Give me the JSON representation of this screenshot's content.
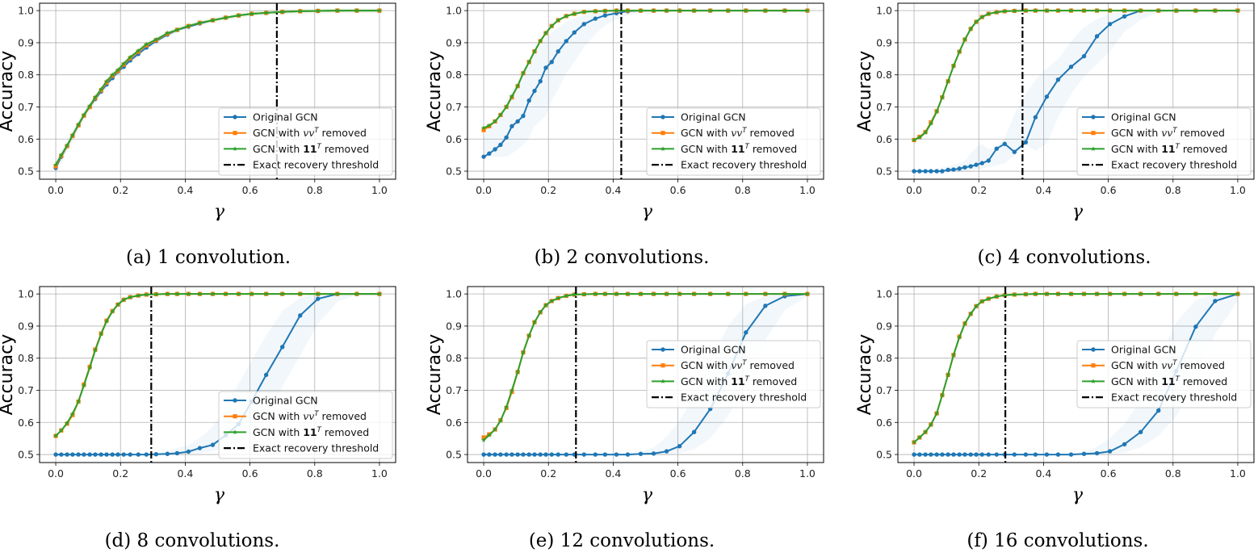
{
  "colors": {
    "original": "#1f77b4",
    "vv_removed": "#ff7f0e",
    "ones_removed": "#2ca02c",
    "threshold": "#000000"
  },
  "legend": [
    {
      "pre": "Original GCN",
      "math": "",
      "sup": "",
      "post": "",
      "marker": "circle",
      "bold": false
    },
    {
      "pre": "GCN with ",
      "math": "vv",
      "sup": "T",
      "post": " removed",
      "marker": "square",
      "bold": false
    },
    {
      "pre": "GCN with ",
      "math": "11",
      "sup": "T",
      "post": " removed",
      "marker": "star",
      "bold": true
    },
    {
      "pre": "Exact recovery threshold",
      "math": "",
      "sup": "",
      "post": "",
      "marker": "dashdot",
      "bold": false
    }
  ],
  "chart_data": [
    {
      "type": "line",
      "caption": "(a) 1 convolution.",
      "xlabel": "γ",
      "ylabel": "Accuracy",
      "xlim": [
        -0.05,
        1.05
      ],
      "ylim": [
        0.475,
        1.023
      ],
      "grid": true,
      "legend_position": "lower right",
      "xticks": [
        "0.0",
        "0.2",
        "0.4",
        "0.6",
        "0.8",
        "1.0"
      ],
      "yticks": [
        "0.5",
        "0.6",
        "0.7",
        "0.8",
        "0.9",
        "1.0"
      ],
      "x": [
        0,
        0.017,
        0.035,
        0.052,
        0.07,
        0.087,
        0.105,
        0.122,
        0.14,
        0.157,
        0.175,
        0.192,
        0.21,
        0.23,
        0.255,
        0.28,
        0.31,
        0.345,
        0.375,
        0.41,
        0.445,
        0.485,
        0.525,
        0.565,
        0.605,
        0.65,
        0.7,
        0.755,
        0.81,
        0.87,
        0.93,
        1.0
      ],
      "threshold": 0.683,
      "series": [
        {
          "name": "Original GCN",
          "values": [
            0.51,
            0.545,
            0.578,
            0.61,
            0.643,
            0.673,
            0.7,
            0.725,
            0.748,
            0.77,
            0.79,
            0.81,
            0.825,
            0.845,
            0.865,
            0.885,
            0.905,
            0.925,
            0.94,
            0.95,
            0.96,
            0.97,
            0.978,
            0.985,
            0.99,
            0.993,
            0.996,
            0.998,
            0.999,
            1,
            1,
            1
          ]
        },
        {
          "name": "GCN with vvT removed",
          "values": [
            0.515,
            0.548,
            0.578,
            0.61,
            0.643,
            0.673,
            0.7,
            0.728,
            0.752,
            0.776,
            0.797,
            0.812,
            0.832,
            0.852,
            0.872,
            0.892,
            0.908,
            0.928,
            0.94,
            0.952,
            0.962,
            0.97,
            0.978,
            0.985,
            0.99,
            0.993,
            0.996,
            0.998,
            0.999,
            1,
            1,
            1
          ]
        },
        {
          "name": "GCN with 11T removed",
          "values": [
            0.52,
            0.55,
            0.58,
            0.612,
            0.645,
            0.675,
            0.703,
            0.73,
            0.755,
            0.78,
            0.8,
            0.815,
            0.835,
            0.855,
            0.875,
            0.895,
            0.91,
            0.93,
            0.94,
            0.952,
            0.962,
            0.97,
            0.978,
            0.985,
            0.99,
            0.993,
            0.996,
            0.998,
            0.999,
            1,
            1,
            1
          ]
        }
      ]
    },
    {
      "type": "line",
      "caption": "(b) 2 convolutions.",
      "xlabel": "γ",
      "ylabel": "Accuracy",
      "xlim": [
        -0.05,
        1.05
      ],
      "ylim": [
        0.475,
        1.023
      ],
      "grid": true,
      "legend_position": "lower right",
      "xticks": [
        "0.0",
        "0.2",
        "0.4",
        "0.6",
        "0.8",
        "1.0"
      ],
      "yticks": [
        "0.5",
        "0.6",
        "0.7",
        "0.8",
        "0.9",
        "1.0"
      ],
      "x": [
        0,
        0.017,
        0.035,
        0.052,
        0.07,
        0.087,
        0.105,
        0.122,
        0.14,
        0.157,
        0.175,
        0.192,
        0.21,
        0.23,
        0.255,
        0.28,
        0.31,
        0.345,
        0.375,
        0.41,
        0.445,
        0.485,
        0.525,
        0.565,
        0.605,
        0.65,
        0.7,
        0.755,
        0.81,
        0.87,
        0.93,
        1.0
      ],
      "threshold": 0.425,
      "series": [
        {
          "name": "Original GCN",
          "values": [
            0.545,
            0.555,
            0.568,
            0.582,
            0.605,
            0.64,
            0.655,
            0.672,
            0.72,
            0.75,
            0.78,
            0.822,
            0.84,
            0.873,
            0.905,
            0.932,
            0.958,
            0.975,
            0.985,
            0.992,
            0.998,
            1,
            1,
            1,
            1,
            1,
            1,
            1,
            1,
            1,
            1,
            1
          ]
        },
        {
          "name": "GCN with vvT removed",
          "values": [
            0.628,
            0.64,
            0.655,
            0.675,
            0.7,
            0.73,
            0.765,
            0.805,
            0.84,
            0.873,
            0.905,
            0.93,
            0.952,
            0.97,
            0.983,
            0.99,
            0.996,
            0.998,
            0.999,
            1,
            1,
            1,
            1,
            1,
            1,
            1,
            1,
            1,
            1,
            1,
            1,
            1
          ]
        },
        {
          "name": "GCN with 11T removed",
          "values": [
            0.635,
            0.642,
            0.655,
            0.675,
            0.7,
            0.733,
            0.765,
            0.805,
            0.84,
            0.873,
            0.905,
            0.93,
            0.952,
            0.97,
            0.983,
            0.99,
            0.996,
            0.998,
            0.999,
            1,
            1,
            1,
            1,
            1,
            1,
            1,
            1,
            1,
            1,
            1,
            1,
            1
          ]
        }
      ]
    },
    {
      "type": "line",
      "caption": "(c) 4 convolutions.",
      "xlabel": "γ",
      "ylabel": "Accuracy",
      "xlim": [
        -0.05,
        1.05
      ],
      "ylim": [
        0.475,
        1.023
      ],
      "grid": true,
      "legend_position": "lower right",
      "xticks": [
        "0.0",
        "0.2",
        "0.4",
        "0.6",
        "0.8",
        "1.0"
      ],
      "yticks": [
        "0.5",
        "0.6",
        "0.7",
        "0.8",
        "0.9",
        "1.0"
      ],
      "x": [
        0,
        0.017,
        0.035,
        0.052,
        0.07,
        0.087,
        0.105,
        0.122,
        0.14,
        0.157,
        0.175,
        0.192,
        0.21,
        0.23,
        0.255,
        0.28,
        0.31,
        0.345,
        0.375,
        0.41,
        0.445,
        0.485,
        0.525,
        0.565,
        0.605,
        0.65,
        0.7,
        0.755,
        0.81,
        0.87,
        0.93,
        1.0
      ],
      "threshold": 0.335,
      "series": [
        {
          "name": "Original GCN",
          "values": [
            0.5,
            0.5,
            0.5,
            0.5,
            0.5,
            0.5,
            0.504,
            0.505,
            0.508,
            0.512,
            0.515,
            0.52,
            0.525,
            0.533,
            0.57,
            0.585,
            0.56,
            0.59,
            0.668,
            0.732,
            0.785,
            0.825,
            0.858,
            0.92,
            0.958,
            0.982,
            1,
            1,
            1,
            1,
            1,
            1
          ]
        },
        {
          "name": "GCN with vvT removed",
          "values": [
            0.597,
            0.607,
            0.622,
            0.652,
            0.687,
            0.73,
            0.78,
            0.828,
            0.872,
            0.91,
            0.943,
            0.965,
            0.98,
            0.99,
            0.995,
            0.998,
            0.999,
            1,
            1,
            1,
            1,
            1,
            1,
            1,
            1,
            1,
            1,
            1,
            1,
            1,
            1,
            1
          ]
        },
        {
          "name": "GCN with 11T removed",
          "values": [
            0.597,
            0.605,
            0.62,
            0.648,
            0.685,
            0.73,
            0.78,
            0.828,
            0.872,
            0.91,
            0.943,
            0.965,
            0.98,
            0.99,
            0.995,
            0.998,
            0.999,
            1,
            1,
            1,
            1,
            1,
            1,
            1,
            1,
            1,
            1,
            1,
            1,
            1,
            1,
            1
          ]
        }
      ]
    },
    {
      "type": "line",
      "caption": "(d) 8 convolutions.",
      "xlabel": "γ",
      "ylabel": "Accuracy",
      "xlim": [
        -0.05,
        1.05
      ],
      "ylim": [
        0.475,
        1.023
      ],
      "grid": true,
      "legend_position": "lower right",
      "xticks": [
        "0.0",
        "0.2",
        "0.4",
        "0.6",
        "0.8",
        "1.0"
      ],
      "yticks": [
        "0.5",
        "0.6",
        "0.7",
        "0.8",
        "0.9",
        "1.0"
      ],
      "x": [
        0,
        0.017,
        0.035,
        0.052,
        0.07,
        0.087,
        0.105,
        0.122,
        0.14,
        0.157,
        0.175,
        0.192,
        0.21,
        0.23,
        0.255,
        0.28,
        0.31,
        0.345,
        0.375,
        0.41,
        0.445,
        0.485,
        0.525,
        0.565,
        0.605,
        0.65,
        0.7,
        0.755,
        0.81,
        0.87,
        0.93,
        1.0
      ],
      "threshold": 0.295,
      "series": [
        {
          "name": "Original GCN",
          "values": [
            0.5,
            0.5,
            0.5,
            0.5,
            0.5,
            0.5,
            0.5,
            0.5,
            0.5,
            0.5,
            0.5,
            0.5,
            0.5,
            0.5,
            0.5,
            0.5,
            0.501,
            0.502,
            0.504,
            0.509,
            0.52,
            0.53,
            0.56,
            0.595,
            0.665,
            0.748,
            0.835,
            0.933,
            0.985,
            1,
            1,
            1
          ]
        },
        {
          "name": "GCN with vvT removed",
          "values": [
            0.558,
            0.575,
            0.596,
            0.623,
            0.665,
            0.718,
            0.773,
            0.827,
            0.877,
            0.917,
            0.947,
            0.967,
            0.982,
            0.99,
            0.995,
            0.998,
            0.999,
            1,
            1,
            1,
            1,
            1,
            1,
            1,
            1,
            1,
            1,
            1,
            1,
            1,
            1,
            1
          ]
        },
        {
          "name": "GCN with 11T removed",
          "values": [
            0.558,
            0.575,
            0.598,
            0.627,
            0.665,
            0.715,
            0.77,
            0.825,
            0.875,
            0.915,
            0.945,
            0.967,
            0.982,
            0.99,
            0.995,
            0.998,
            0.999,
            1,
            1,
            1,
            1,
            1,
            1,
            1,
            1,
            1,
            1,
            1,
            1,
            1,
            1,
            1
          ]
        }
      ]
    },
    {
      "type": "line",
      "caption": "(e) 12 convolutions.",
      "xlabel": "γ",
      "ylabel": "Accuracy",
      "xlim": [
        -0.05,
        1.05
      ],
      "ylim": [
        0.475,
        1.023
      ],
      "grid": true,
      "legend_position": "center right",
      "xticks": [
        "0.0",
        "0.2",
        "0.4",
        "0.6",
        "0.8",
        "1.0"
      ],
      "yticks": [
        "0.5",
        "0.6",
        "0.7",
        "0.8",
        "0.9",
        "1.0"
      ],
      "x": [
        0,
        0.017,
        0.035,
        0.052,
        0.07,
        0.087,
        0.105,
        0.122,
        0.14,
        0.157,
        0.175,
        0.192,
        0.21,
        0.23,
        0.255,
        0.28,
        0.31,
        0.345,
        0.375,
        0.41,
        0.445,
        0.485,
        0.525,
        0.565,
        0.605,
        0.65,
        0.7,
        0.755,
        0.81,
        0.87,
        0.93,
        1.0
      ],
      "threshold": 0.285,
      "series": [
        {
          "name": "Original GCN",
          "values": [
            0.5,
            0.5,
            0.5,
            0.5,
            0.5,
            0.5,
            0.5,
            0.5,
            0.5,
            0.5,
            0.5,
            0.5,
            0.5,
            0.5,
            0.5,
            0.5,
            0.5,
            0.5,
            0.5,
            0.5,
            0.5,
            0.502,
            0.503,
            0.51,
            0.526,
            0.57,
            0.642,
            0.752,
            0.88,
            0.963,
            0.993,
            1
          ]
        },
        {
          "name": "GCN with vvT removed",
          "values": [
            0.553,
            0.563,
            0.578,
            0.607,
            0.645,
            0.695,
            0.757,
            0.818,
            0.87,
            0.912,
            0.943,
            0.965,
            0.978,
            0.987,
            0.994,
            0.998,
            0.999,
            1,
            1,
            1,
            1,
            1,
            1,
            1,
            1,
            1,
            1,
            1,
            1,
            1,
            1,
            1
          ]
        },
        {
          "name": "GCN with 11T removed",
          "values": [
            0.545,
            0.56,
            0.578,
            0.605,
            0.648,
            0.7,
            0.757,
            0.818,
            0.87,
            0.912,
            0.943,
            0.965,
            0.978,
            0.987,
            0.994,
            0.998,
            0.999,
            1,
            1,
            1,
            1,
            1,
            1,
            1,
            1,
            1,
            1,
            1,
            1,
            1,
            1,
            1
          ]
        }
      ]
    },
    {
      "type": "line",
      "caption": "(f) 16 convolutions.",
      "xlabel": "γ",
      "ylabel": "Accuracy",
      "xlim": [
        -0.05,
        1.05
      ],
      "ylim": [
        0.475,
        1.023
      ],
      "grid": true,
      "legend_position": "center right",
      "xticks": [
        "0.0",
        "0.2",
        "0.4",
        "0.6",
        "0.8",
        "1.0"
      ],
      "yticks": [
        "0.5",
        "0.6",
        "0.7",
        "0.8",
        "0.9",
        "1.0"
      ],
      "x": [
        0,
        0.017,
        0.035,
        0.052,
        0.07,
        0.087,
        0.105,
        0.122,
        0.14,
        0.157,
        0.175,
        0.192,
        0.21,
        0.23,
        0.255,
        0.28,
        0.31,
        0.345,
        0.375,
        0.41,
        0.445,
        0.485,
        0.525,
        0.565,
        0.605,
        0.65,
        0.7,
        0.755,
        0.81,
        0.87,
        0.93,
        1.0
      ],
      "threshold": 0.282,
      "series": [
        {
          "name": "Original GCN",
          "values": [
            0.5,
            0.5,
            0.5,
            0.5,
            0.5,
            0.5,
            0.5,
            0.5,
            0.5,
            0.5,
            0.5,
            0.5,
            0.5,
            0.5,
            0.5,
            0.5,
            0.5,
            0.5,
            0.5,
            0.5,
            0.5,
            0.5,
            0.502,
            0.504,
            0.51,
            0.532,
            0.57,
            0.637,
            0.76,
            0.898,
            0.978,
            1
          ]
        },
        {
          "name": "GCN with vvT removed",
          "values": [
            0.538,
            0.553,
            0.57,
            0.593,
            0.628,
            0.685,
            0.748,
            0.81,
            0.867,
            0.908,
            0.938,
            0.962,
            0.977,
            0.985,
            0.992,
            0.996,
            0.998,
            0.999,
            1,
            1,
            1,
            1,
            1,
            1,
            1,
            1,
            1,
            1,
            1,
            1,
            1,
            1
          ]
        },
        {
          "name": "GCN with 11T removed",
          "values": [
            0.538,
            0.553,
            0.57,
            0.593,
            0.628,
            0.685,
            0.748,
            0.81,
            0.865,
            0.908,
            0.938,
            0.962,
            0.977,
            0.985,
            0.992,
            0.996,
            0.998,
            0.999,
            1,
            1,
            1,
            1,
            1,
            1,
            1,
            1,
            1,
            1,
            1,
            1,
            1,
            1
          ]
        }
      ]
    }
  ]
}
